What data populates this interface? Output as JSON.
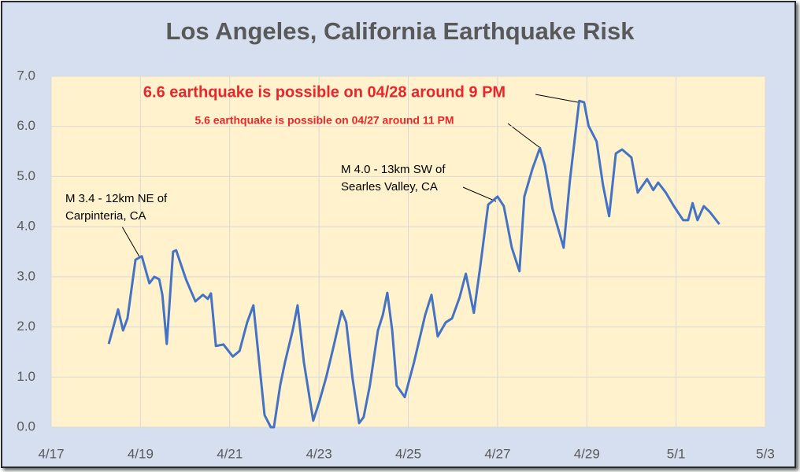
{
  "chart_data": {
    "type": "line",
    "title": "Los Angeles, California Earthquake Risk",
    "color": "#4472c4",
    "x": [
      1.29,
      1.5,
      1.61,
      1.71,
      1.89,
      2.03,
      2.2,
      2.31,
      2.42,
      2.49,
      2.59,
      2.73,
      2.8,
      3.02,
      3.23,
      3.4,
      3.51,
      3.58,
      3.69,
      3.86,
      4.07,
      4.22,
      4.39,
      4.53,
      4.78,
      4.92,
      4.99,
      5.13,
      5.24,
      5.41,
      5.52,
      5.66,
      5.87,
      6.01,
      6.16,
      6.33,
      6.51,
      6.61,
      6.75,
      6.9,
      7.0,
      7.14,
      7.32,
      7.43,
      7.53,
      7.64,
      7.74,
      7.92,
      8.13,
      8.38,
      8.52,
      8.66,
      8.84,
      8.98,
      9.15,
      9.29,
      9.47,
      9.61,
      9.79,
      10.0,
      10.14,
      10.32,
      10.49,
      10.6,
      10.78,
      10.95,
      11.06,
      11.23,
      11.48,
      11.62,
      11.83,
      11.94,
      12.04,
      12.22,
      12.36,
      12.5,
      12.65,
      12.79,
      13.0,
      13.14,
      13.35,
      13.49,
      13.6,
      13.77,
      13.95,
      14.16,
      14.27,
      14.37,
      14.48,
      14.62,
      14.76,
      14.97
    ],
    "values": [
      1.66,
      2.35,
      1.93,
      2.17,
      3.34,
      3.41,
      2.87,
      3.0,
      2.95,
      2.64,
      1.66,
      3.5,
      3.53,
      2.95,
      2.51,
      2.64,
      2.56,
      2.67,
      1.62,
      1.65,
      1.41,
      1.52,
      2.09,
      2.43,
      0.24,
      0.0,
      0.0,
      0.83,
      1.3,
      1.93,
      2.43,
      1.3,
      0.13,
      0.52,
      0.99,
      1.62,
      2.32,
      2.09,
      0.99,
      0.08,
      0.2,
      0.83,
      1.93,
      2.24,
      2.68,
      1.93,
      0.83,
      0.6,
      1.3,
      2.24,
      2.64,
      1.81,
      2.09,
      2.17,
      2.59,
      3.06,
      2.28,
      3.19,
      4.44,
      4.6,
      4.41,
      3.58,
      3.11,
      4.6,
      5.15,
      5.57,
      5.22,
      4.36,
      3.58,
      4.91,
      6.51,
      6.48,
      6.01,
      5.7,
      4.84,
      4.21,
      5.46,
      5.54,
      5.38,
      4.68,
      4.95,
      4.73,
      4.88,
      4.68,
      4.41,
      4.13,
      4.13,
      4.47,
      4.13,
      4.41,
      4.29,
      4.05
    ],
    "xlim": [
      0,
      16
    ],
    "xticks": [
      {
        "value": 0,
        "label": "4/17"
      },
      {
        "value": 2,
        "label": "4/19"
      },
      {
        "value": 4,
        "label": "4/21"
      },
      {
        "value": 6,
        "label": "4/23"
      },
      {
        "value": 8,
        "label": "4/25"
      },
      {
        "value": 10,
        "label": "4/27"
      },
      {
        "value": 12,
        "label": "4/29"
      },
      {
        "value": 14,
        "label": "5/1"
      },
      {
        "value": 16,
        "label": "5/3"
      }
    ],
    "ylim": [
      0,
      7
    ],
    "yticks": [
      {
        "value": 0,
        "label": "0.0"
      },
      {
        "value": 1,
        "label": "1.0"
      },
      {
        "value": 2,
        "label": "2.0"
      },
      {
        "value": 3,
        "label": "3.0"
      },
      {
        "value": 4,
        "label": "4.0"
      },
      {
        "value": 5,
        "label": "5.0"
      },
      {
        "value": 6,
        "label": "6.0"
      },
      {
        "value": 7,
        "label": "7.0"
      }
    ],
    "grid": true,
    "annotations": [
      {
        "lines": [
          "6.6 earthquake is possible on 04/28 around 9 PM"
        ],
        "color": "#e8262b"
      },
      {
        "lines": [
          "5.6 earthquake is possible on 04/27 around 11 PM"
        ],
        "color": "#e8262b"
      },
      {
        "lines": [
          "M 4.0 - 13km SW of",
          "Searles Valley, CA"
        ],
        "color": "#000000"
      },
      {
        "lines": [
          "M 3.4 - 12km NE of",
          "Carpinteria, CA"
        ],
        "color": "#000000"
      }
    ]
  }
}
